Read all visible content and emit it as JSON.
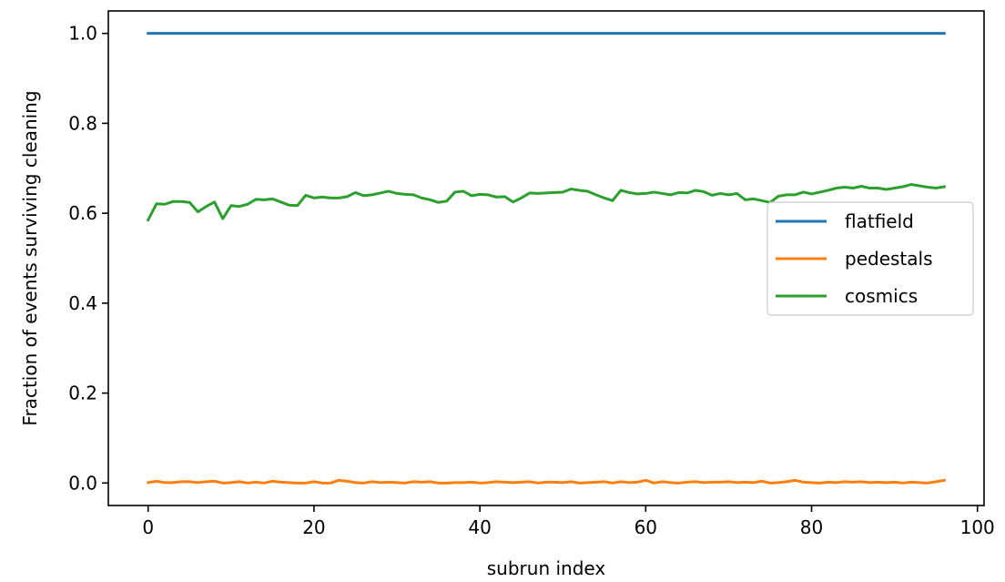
{
  "chart_data": {
    "type": "line",
    "title": "",
    "xlabel": "subrun index",
    "ylabel": "Fraction of events surviving cleaning",
    "xlim": [
      -4.8,
      100.8
    ],
    "ylim": [
      -0.05,
      1.05
    ],
    "xticks": [
      0,
      20,
      40,
      60,
      80,
      100
    ],
    "yticks": [
      0.0,
      0.2,
      0.4,
      0.6,
      0.8,
      1.0
    ],
    "xtick_labels": [
      "0",
      "20",
      "40",
      "60",
      "80",
      "100"
    ],
    "ytick_labels": [
      "0.0",
      "0.2",
      "0.4",
      "0.6",
      "0.8",
      "1.0"
    ],
    "grid": false,
    "legend_position": "center-right",
    "series": [
      {
        "name": "flatfield",
        "color": "#1f77b4",
        "x": [
          0,
          96
        ],
        "y": [
          1.0,
          1.0
        ]
      },
      {
        "name": "pedestals",
        "color": "#ff7f0e",
        "x": [
          0,
          1,
          2,
          3,
          4,
          5,
          6,
          7,
          8,
          9,
          10,
          11,
          12,
          13,
          14,
          15,
          16,
          17,
          18,
          19,
          20,
          21,
          22,
          23,
          24,
          25,
          26,
          27,
          28,
          29,
          30,
          31,
          32,
          33,
          34,
          35,
          36,
          37,
          38,
          39,
          40,
          41,
          42,
          43,
          44,
          45,
          46,
          47,
          48,
          49,
          50,
          51,
          52,
          53,
          54,
          55,
          56,
          57,
          58,
          59,
          60,
          61,
          62,
          63,
          64,
          65,
          66,
          67,
          68,
          69,
          70,
          71,
          72,
          73,
          74,
          75,
          76,
          77,
          78,
          79,
          80,
          81,
          82,
          83,
          84,
          85,
          86,
          87,
          88,
          89,
          90,
          91,
          92,
          93,
          94,
          95,
          96
        ],
        "y": [
          0.001,
          0.004,
          0.001,
          0.001,
          0.003,
          0.003,
          0.001,
          0.003,
          0.004,
          0.0,
          0.001,
          0.003,
          0.0,
          0.002,
          0.0,
          0.004,
          0.002,
          0.001,
          0.0,
          0.0,
          0.003,
          0.0,
          0.0,
          0.006,
          0.004,
          0.001,
          0.0,
          0.003,
          0.001,
          0.002,
          0.001,
          0.0,
          0.003,
          0.002,
          0.003,
          0.0,
          0.0,
          0.001,
          0.001,
          0.002,
          0.0,
          0.001,
          0.003,
          0.002,
          0.001,
          0.002,
          0.003,
          0.0,
          0.002,
          0.002,
          0.001,
          0.003,
          0.0,
          0.001,
          0.002,
          0.003,
          0.0,
          0.003,
          0.001,
          0.002,
          0.006,
          0.0,
          0.003,
          0.001,
          0.0,
          0.002,
          0.003,
          0.001,
          0.002,
          0.002,
          0.003,
          0.001,
          0.002,
          0.001,
          0.004,
          0.0,
          0.001,
          0.003,
          0.006,
          0.002,
          0.001,
          0.0,
          0.002,
          0.001,
          0.003,
          0.002,
          0.003,
          0.001,
          0.002,
          0.001,
          0.002,
          0.0,
          0.002,
          0.001,
          0.0,
          0.003,
          0.006
        ]
      },
      {
        "name": "cosmics",
        "color": "#2ca02c",
        "x": [
          0,
          1,
          2,
          3,
          4,
          5,
          6,
          7,
          8,
          9,
          10,
          11,
          12,
          13,
          14,
          15,
          16,
          17,
          18,
          19,
          20,
          21,
          22,
          23,
          24,
          25,
          26,
          27,
          28,
          29,
          30,
          31,
          32,
          33,
          34,
          35,
          36,
          37,
          38,
          39,
          40,
          41,
          42,
          43,
          44,
          45,
          46,
          47,
          48,
          49,
          50,
          51,
          52,
          53,
          54,
          55,
          56,
          57,
          58,
          59,
          60,
          61,
          62,
          63,
          64,
          65,
          66,
          67,
          68,
          69,
          70,
          71,
          72,
          73,
          74,
          75,
          76,
          77,
          78,
          79,
          80,
          81,
          82,
          83,
          84,
          85,
          86,
          87,
          88,
          89,
          90,
          91,
          92,
          93,
          94,
          95,
          96
        ],
        "y": [
          0.585,
          0.621,
          0.62,
          0.626,
          0.626,
          0.624,
          0.603,
          0.615,
          0.625,
          0.588,
          0.617,
          0.615,
          0.62,
          0.631,
          0.63,
          0.632,
          0.625,
          0.618,
          0.617,
          0.64,
          0.634,
          0.636,
          0.634,
          0.634,
          0.637,
          0.646,
          0.639,
          0.641,
          0.645,
          0.649,
          0.644,
          0.642,
          0.641,
          0.634,
          0.63,
          0.624,
          0.627,
          0.647,
          0.649,
          0.639,
          0.642,
          0.641,
          0.636,
          0.637,
          0.625,
          0.634,
          0.645,
          0.644,
          0.645,
          0.646,
          0.647,
          0.654,
          0.651,
          0.649,
          0.641,
          0.634,
          0.628,
          0.651,
          0.646,
          0.643,
          0.644,
          0.647,
          0.644,
          0.641,
          0.646,
          0.645,
          0.651,
          0.648,
          0.64,
          0.644,
          0.641,
          0.644,
          0.63,
          0.632,
          0.628,
          0.624,
          0.638,
          0.641,
          0.641,
          0.647,
          0.643,
          0.647,
          0.651,
          0.656,
          0.658,
          0.656,
          0.66,
          0.656,
          0.656,
          0.653,
          0.656,
          0.659,
          0.664,
          0.661,
          0.658,
          0.656,
          0.659
        ]
      }
    ]
  }
}
